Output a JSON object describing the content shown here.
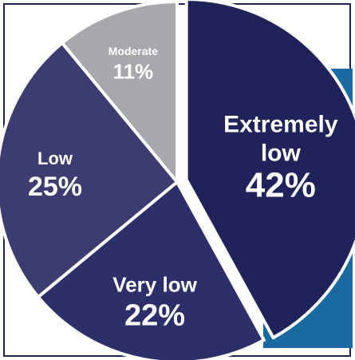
{
  "chart_data": {
    "type": "pie",
    "title": "",
    "slices": [
      {
        "label_lines": [
          "Extremely",
          "low"
        ],
        "value": 42,
        "value_label": "42%",
        "color": "#1f2359"
      },
      {
        "label_lines": [
          "Very low"
        ],
        "value": 22,
        "value_label": "22%",
        "color": "#2d2f6b"
      },
      {
        "label_lines": [
          "Low"
        ],
        "value": 25,
        "value_label": "25%",
        "color": "#3d3c70"
      },
      {
        "label_lines": [
          "Moderate"
        ],
        "value": 11,
        "value_label": "11%",
        "color": "#a7a8ab"
      }
    ],
    "legend": "none"
  },
  "colors": {
    "accent_panel": "#1a6aa1",
    "frame": "#1f2356",
    "slice_border": "#ffffff"
  }
}
